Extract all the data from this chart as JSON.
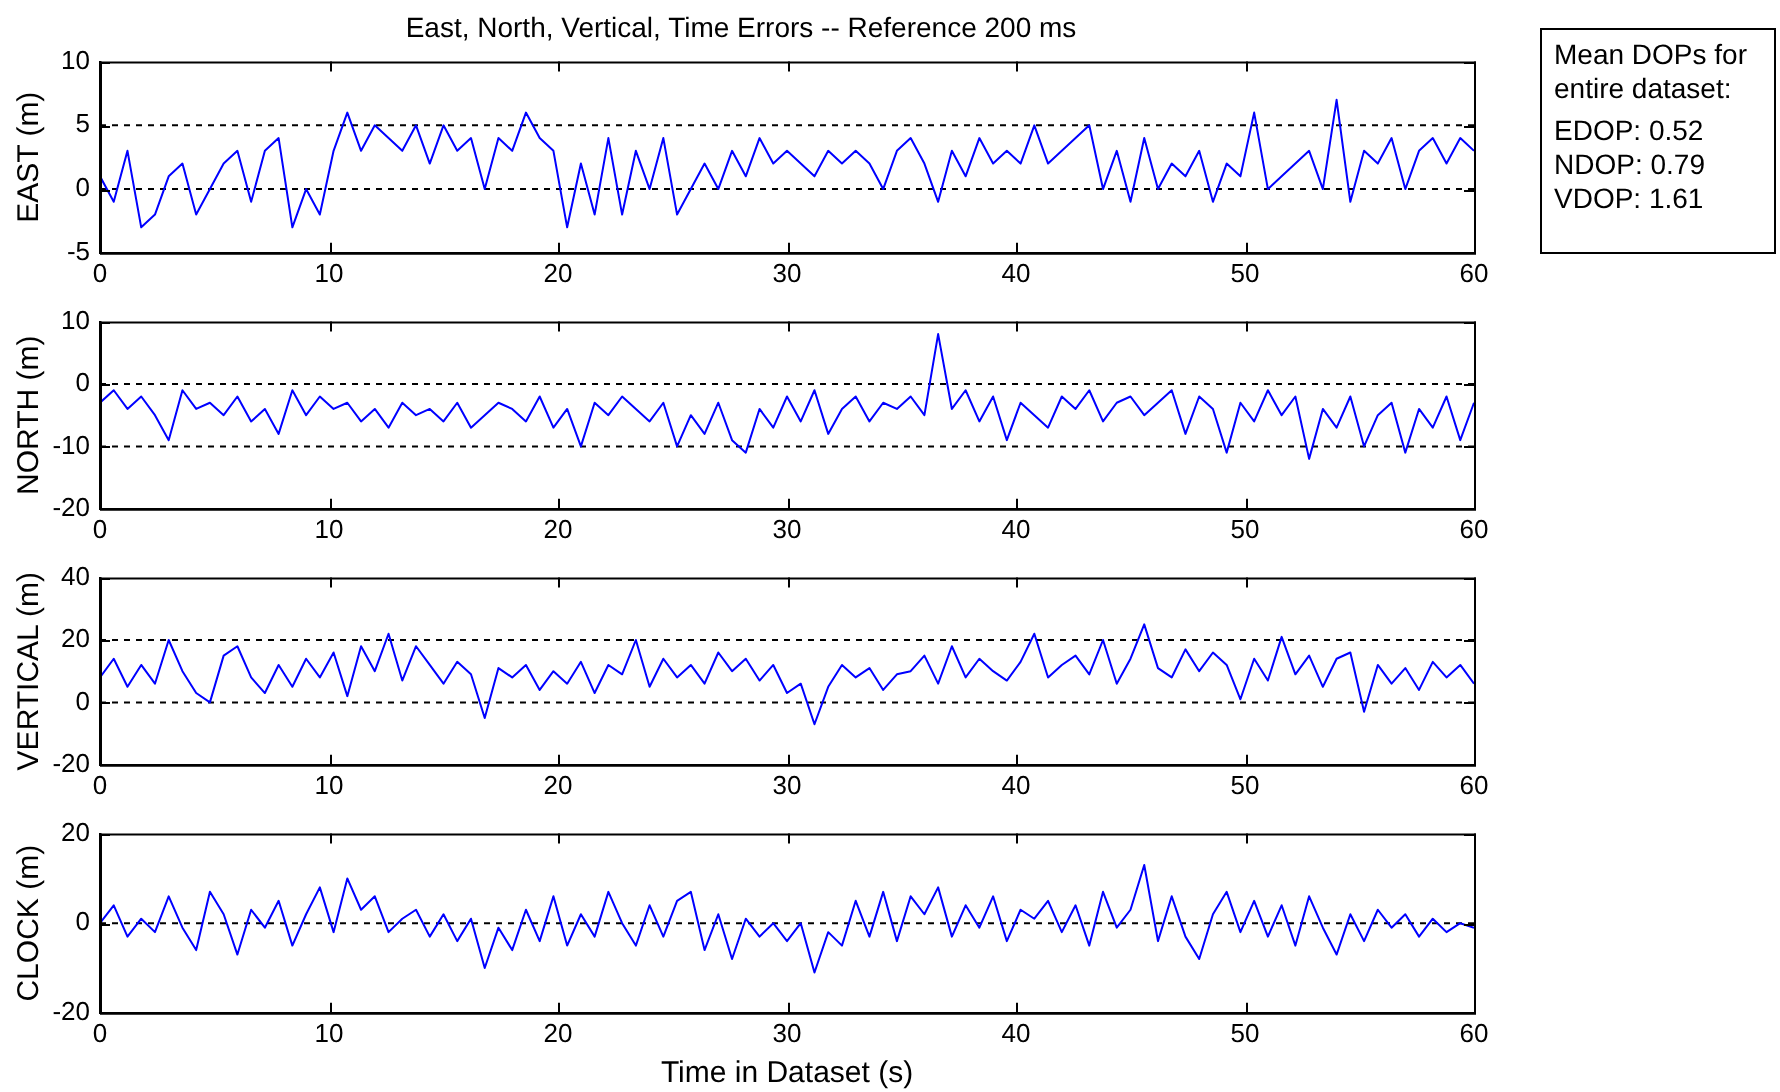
{
  "chart_data": [
    {
      "type": "line",
      "title": "East, North, Vertical, Time Errors -- Reference 200 ms",
      "ylabel": "EAST (m)",
      "x": [
        0,
        0.6,
        1.2,
        1.8,
        2.4,
        3,
        3.6,
        4.2,
        4.8,
        5.4,
        6,
        6.6,
        7.2,
        7.8,
        8.4,
        9,
        9.6,
        10.2,
        10.8,
        11.4,
        12,
        12.6,
        13.2,
        13.8,
        14.4,
        15,
        15.6,
        16.2,
        16.8,
        17.4,
        18,
        18.6,
        19.2,
        19.8,
        20.4,
        21,
        21.6,
        22.2,
        22.8,
        23.4,
        24,
        24.6,
        25.2,
        25.8,
        26.4,
        27,
        27.6,
        28.2,
        28.8,
        29.4,
        30,
        30.6,
        31.2,
        31.8,
        32.4,
        33,
        33.6,
        34.2,
        34.8,
        35.4,
        36,
        36.6,
        37.2,
        37.8,
        38.4,
        39,
        39.6,
        40.2,
        40.8,
        41.4,
        42,
        42.6,
        43.2,
        43.8,
        44.4,
        45,
        45.6,
        46.2,
        46.8,
        47.4,
        48,
        48.6,
        49.2,
        49.8,
        50.4,
        51,
        51.6,
        52.2,
        52.8,
        53.4,
        54,
        54.6,
        55.2,
        55.8,
        56.4,
        57,
        57.6,
        58.2,
        58.8,
        59.4,
        60
      ],
      "series": [
        {
          "color": "#0000ff",
          "values": [
            1,
            -1,
            3,
            -3,
            -2,
            1,
            2,
            -2,
            0,
            2,
            3,
            -1,
            3,
            4,
            -3,
            0,
            -2,
            3,
            6,
            3,
            5,
            4,
            3,
            5,
            2,
            5,
            3,
            4,
            0,
            4,
            3,
            6,
            4,
            3,
            -3,
            2,
            -2,
            4,
            -2,
            3,
            0,
            4,
            -2,
            0,
            2,
            0,
            3,
            1,
            4,
            2,
            3,
            2,
            1,
            3,
            2,
            3,
            2,
            0,
            3,
            4,
            2,
            -1,
            3,
            1,
            4,
            2,
            3,
            2,
            5,
            2,
            3,
            4,
            5,
            0,
            3,
            -1,
            4,
            0,
            2,
            1,
            3,
            -1,
            2,
            1,
            6,
            0,
            1,
            2,
            3,
            0,
            7,
            -1,
            3,
            2,
            4,
            0,
            3,
            4,
            2,
            4,
            3
          ]
        }
      ],
      "xlim": [
        0,
        60
      ],
      "xticks": [
        0,
        10,
        20,
        30,
        40,
        50,
        60
      ],
      "ylim": [
        -5,
        10
      ],
      "yticks": [
        -5,
        0,
        5,
        10
      ],
      "grid": false,
      "legend": false,
      "line_style": "solid",
      "marker": "none",
      "ref_lines": [
        {
          "axis": "y",
          "value": 5,
          "line_style": "dashed",
          "color": "#000000"
        },
        {
          "axis": "y",
          "value": 0,
          "line_style": "dashed",
          "color": "#000000"
        }
      ],
      "annotations": [
        "Mean DOPs for entire dataset:",
        "EDOP: 0.52",
        "NDOP: 0.79",
        "VDOP: 1.61"
      ]
    },
    {
      "type": "line",
      "ylabel": "NORTH (m)",
      "x": [
        0,
        0.6,
        1.2,
        1.8,
        2.4,
        3,
        3.6,
        4.2,
        4.8,
        5.4,
        6,
        6.6,
        7.2,
        7.8,
        8.4,
        9,
        9.6,
        10.2,
        10.8,
        11.4,
        12,
        12.6,
        13.2,
        13.8,
        14.4,
        15,
        15.6,
        16.2,
        16.8,
        17.4,
        18,
        18.6,
        19.2,
        19.8,
        20.4,
        21,
        21.6,
        22.2,
        22.8,
        23.4,
        24,
        24.6,
        25.2,
        25.8,
        26.4,
        27,
        27.6,
        28.2,
        28.8,
        29.4,
        30,
        30.6,
        31.2,
        31.8,
        32.4,
        33,
        33.6,
        34.2,
        34.8,
        35.4,
        36,
        36.6,
        37.2,
        37.8,
        38.4,
        39,
        39.6,
        40.2,
        40.8,
        41.4,
        42,
        42.6,
        43.2,
        43.8,
        44.4,
        45,
        45.6,
        46.2,
        46.8,
        47.4,
        48,
        48.6,
        49.2,
        49.8,
        50.4,
        51,
        51.6,
        52.2,
        52.8,
        53.4,
        54,
        54.6,
        55.2,
        55.8,
        56.4,
        57,
        57.6,
        58.2,
        58.8,
        59.4,
        60
      ],
      "series": [
        {
          "color": "#0000ff",
          "values": [
            -3,
            -1,
            -4,
            -2,
            -5,
            -9,
            -1,
            -4,
            -3,
            -5,
            -2,
            -6,
            -4,
            -8,
            -1,
            -5,
            -2,
            -4,
            -3,
            -6,
            -4,
            -7,
            -3,
            -5,
            -4,
            -6,
            -3,
            -7,
            -5,
            -3,
            -4,
            -6,
            -2,
            -7,
            -4,
            -10,
            -3,
            -5,
            -2,
            -4,
            -6,
            -3,
            -10,
            -5,
            -8,
            -3,
            -9,
            -11,
            -4,
            -7,
            -2,
            -6,
            -1,
            -8,
            -4,
            -2,
            -6,
            -3,
            -4,
            -2,
            -5,
            8,
            -4,
            -1,
            -6,
            -2,
            -9,
            -3,
            -5,
            -7,
            -2,
            -4,
            -1,
            -6,
            -3,
            -2,
            -5,
            -3,
            -1,
            -8,
            -2,
            -4,
            -11,
            -3,
            -6,
            -1,
            -5,
            -2,
            -12,
            -4,
            -7,
            -2,
            -10,
            -5,
            -3,
            -11,
            -4,
            -7,
            -2,
            -9,
            -3
          ]
        }
      ],
      "xlim": [
        0,
        60
      ],
      "xticks": [
        0,
        10,
        20,
        30,
        40,
        50,
        60
      ],
      "ylim": [
        -20,
        10
      ],
      "yticks": [
        -20,
        -10,
        0,
        10
      ],
      "grid": false,
      "legend": false,
      "line_style": "solid",
      "marker": "none",
      "ref_lines": [
        {
          "axis": "y",
          "value": 0,
          "line_style": "dashed",
          "color": "#000000"
        },
        {
          "axis": "y",
          "value": -10,
          "line_style": "dashed",
          "color": "#000000"
        }
      ]
    },
    {
      "type": "line",
      "ylabel": "VERTICAL (m)",
      "x": [
        0,
        0.6,
        1.2,
        1.8,
        2.4,
        3,
        3.6,
        4.2,
        4.8,
        5.4,
        6,
        6.6,
        7.2,
        7.8,
        8.4,
        9,
        9.6,
        10.2,
        10.8,
        11.4,
        12,
        12.6,
        13.2,
        13.8,
        14.4,
        15,
        15.6,
        16.2,
        16.8,
        17.4,
        18,
        18.6,
        19.2,
        19.8,
        20.4,
        21,
        21.6,
        22.2,
        22.8,
        23.4,
        24,
        24.6,
        25.2,
        25.8,
        26.4,
        27,
        27.6,
        28.2,
        28.8,
        29.4,
        30,
        30.6,
        31.2,
        31.8,
        32.4,
        33,
        33.6,
        34.2,
        34.8,
        35.4,
        36,
        36.6,
        37.2,
        37.8,
        38.4,
        39,
        39.6,
        40.2,
        40.8,
        41.4,
        42,
        42.6,
        43.2,
        43.8,
        44.4,
        45,
        45.6,
        46.2,
        46.8,
        47.4,
        48,
        48.6,
        49.2,
        49.8,
        50.4,
        51,
        51.6,
        52.2,
        52.8,
        53.4,
        54,
        54.6,
        55.2,
        55.8,
        56.4,
        57,
        57.6,
        58.2,
        58.8,
        59.4,
        60
      ],
      "series": [
        {
          "color": "#0000ff",
          "values": [
            8,
            14,
            5,
            12,
            6,
            20,
            10,
            3,
            0,
            15,
            18,
            8,
            3,
            12,
            5,
            14,
            8,
            16,
            2,
            18,
            10,
            22,
            7,
            18,
            12,
            6,
            13,
            9,
            -5,
            11,
            8,
            12,
            4,
            10,
            6,
            13,
            3,
            12,
            9,
            20,
            5,
            14,
            8,
            12,
            6,
            16,
            10,
            14,
            7,
            12,
            3,
            6,
            -7,
            5,
            12,
            8,
            11,
            4,
            9,
            10,
            15,
            6,
            18,
            8,
            14,
            10,
            7,
            13,
            22,
            8,
            12,
            15,
            9,
            20,
            6,
            14,
            25,
            11,
            8,
            17,
            10,
            16,
            12,
            1,
            14,
            7,
            21,
            9,
            15,
            5,
            14,
            16,
            -3,
            12,
            6,
            11,
            4,
            13,
            8,
            12,
            6
          ]
        }
      ],
      "xlim": [
        0,
        60
      ],
      "xticks": [
        0,
        10,
        20,
        30,
        40,
        50,
        60
      ],
      "ylim": [
        -20,
        40
      ],
      "yticks": [
        -20,
        0,
        20,
        40
      ],
      "grid": false,
      "legend": false,
      "line_style": "solid",
      "marker": "none",
      "ref_lines": [
        {
          "axis": "y",
          "value": 20,
          "line_style": "dashed",
          "color": "#000000"
        },
        {
          "axis": "y",
          "value": 0,
          "line_style": "dashed",
          "color": "#000000"
        }
      ]
    },
    {
      "type": "line",
      "ylabel": "CLOCK (m)",
      "xlabel": "Time in Dataset (s)",
      "x": [
        0,
        0.6,
        1.2,
        1.8,
        2.4,
        3,
        3.6,
        4.2,
        4.8,
        5.4,
        6,
        6.6,
        7.2,
        7.8,
        8.4,
        9,
        9.6,
        10.2,
        10.8,
        11.4,
        12,
        12.6,
        13.2,
        13.8,
        14.4,
        15,
        15.6,
        16.2,
        16.8,
        17.4,
        18,
        18.6,
        19.2,
        19.8,
        20.4,
        21,
        21.6,
        22.2,
        22.8,
        23.4,
        24,
        24.6,
        25.2,
        25.8,
        26.4,
        27,
        27.6,
        28.2,
        28.8,
        29.4,
        30,
        30.6,
        31.2,
        31.8,
        32.4,
        33,
        33.6,
        34.2,
        34.8,
        35.4,
        36,
        36.6,
        37.2,
        37.8,
        38.4,
        39,
        39.6,
        40.2,
        40.8,
        41.4,
        42,
        42.6,
        43.2,
        43.8,
        44.4,
        45,
        45.6,
        46.2,
        46.8,
        47.4,
        48,
        48.6,
        49.2,
        49.8,
        50.4,
        51,
        51.6,
        52.2,
        52.8,
        53.4,
        54,
        54.6,
        55.2,
        55.8,
        56.4,
        57,
        57.6,
        58.2,
        58.8,
        59.4,
        60
      ],
      "series": [
        {
          "color": "#0000ff",
          "values": [
            0,
            4,
            -3,
            1,
            -2,
            6,
            -1,
            -6,
            7,
            2,
            -7,
            3,
            -1,
            5,
            -5,
            2,
            8,
            -2,
            10,
            3,
            6,
            -2,
            1,
            3,
            -3,
            2,
            -4,
            1,
            -10,
            -1,
            -6,
            3,
            -4,
            6,
            -5,
            2,
            -3,
            7,
            0,
            -5,
            4,
            -3,
            5,
            7,
            -6,
            2,
            -8,
            1,
            -3,
            0,
            -4,
            0,
            -11,
            -2,
            -5,
            5,
            -3,
            7,
            -4,
            6,
            2,
            8,
            -3,
            4,
            -1,
            6,
            -4,
            3,
            1,
            5,
            -2,
            4,
            -5,
            7,
            -1,
            3,
            13,
            -4,
            6,
            -3,
            -8,
            2,
            7,
            -2,
            5,
            -3,
            4,
            -5,
            6,
            -1,
            -7,
            2,
            -4,
            3,
            -1,
            2,
            -3,
            1,
            -2,
            0,
            -1
          ]
        }
      ],
      "xlim": [
        0,
        60
      ],
      "xticks": [
        0,
        10,
        20,
        30,
        40,
        50,
        60
      ],
      "ylim": [
        -20,
        20
      ],
      "yticks": [
        -20,
        0,
        20
      ],
      "grid": false,
      "legend": false,
      "line_style": "solid",
      "marker": "none",
      "ref_lines": [
        {
          "axis": "y",
          "value": 0,
          "line_style": "dashed",
          "color": "#000000"
        }
      ]
    }
  ]
}
